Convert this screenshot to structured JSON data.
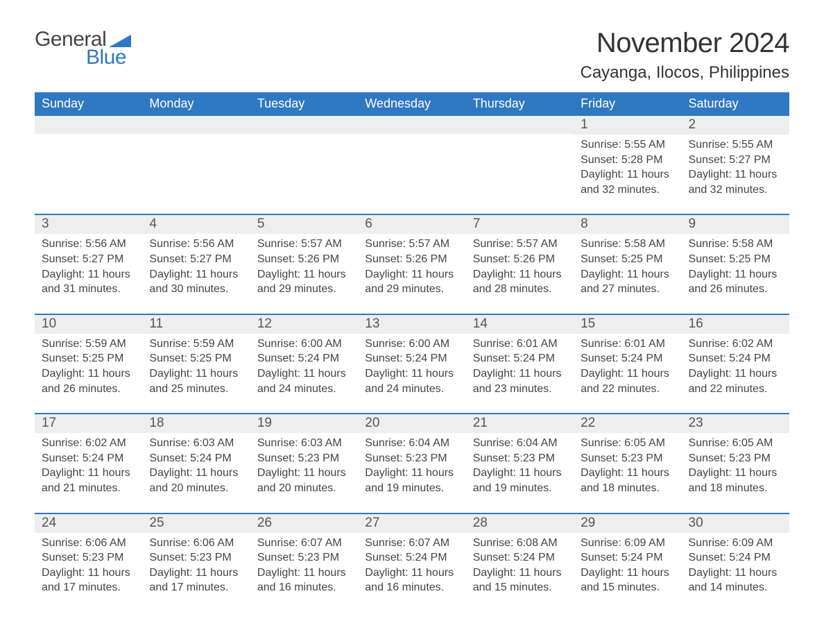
{
  "logo": {
    "word1": "General",
    "word2": "Blue"
  },
  "title": "November 2024",
  "location": "Cayanga, Ilocos, Philippines",
  "day_names": [
    "Sunday",
    "Monday",
    "Tuesday",
    "Wednesday",
    "Thursday",
    "Friday",
    "Saturday"
  ],
  "labels": {
    "sunrise": "Sunrise: ",
    "sunset": "Sunset: ",
    "daylight": "Daylight: "
  },
  "colors": {
    "header_blue": "#2f78c2",
    "grey_band": "#eeeeee",
    "text": "#333333",
    "background": "#ffffff"
  },
  "weeks": [
    [
      {
        "empty": true
      },
      {
        "empty": true
      },
      {
        "empty": true
      },
      {
        "empty": true
      },
      {
        "empty": true
      },
      {
        "n": "1",
        "sunrise": "5:55 AM",
        "sunset": "5:28 PM",
        "daylight": "11 hours and 32 minutes."
      },
      {
        "n": "2",
        "sunrise": "5:55 AM",
        "sunset": "5:27 PM",
        "daylight": "11 hours and 32 minutes."
      }
    ],
    [
      {
        "n": "3",
        "sunrise": "5:56 AM",
        "sunset": "5:27 PM",
        "daylight": "11 hours and 31 minutes."
      },
      {
        "n": "4",
        "sunrise": "5:56 AM",
        "sunset": "5:27 PM",
        "daylight": "11 hours and 30 minutes."
      },
      {
        "n": "5",
        "sunrise": "5:57 AM",
        "sunset": "5:26 PM",
        "daylight": "11 hours and 29 minutes."
      },
      {
        "n": "6",
        "sunrise": "5:57 AM",
        "sunset": "5:26 PM",
        "daylight": "11 hours and 29 minutes."
      },
      {
        "n": "7",
        "sunrise": "5:57 AM",
        "sunset": "5:26 PM",
        "daylight": "11 hours and 28 minutes."
      },
      {
        "n": "8",
        "sunrise": "5:58 AM",
        "sunset": "5:25 PM",
        "daylight": "11 hours and 27 minutes."
      },
      {
        "n": "9",
        "sunrise": "5:58 AM",
        "sunset": "5:25 PM",
        "daylight": "11 hours and 26 minutes."
      }
    ],
    [
      {
        "n": "10",
        "sunrise": "5:59 AM",
        "sunset": "5:25 PM",
        "daylight": "11 hours and 26 minutes."
      },
      {
        "n": "11",
        "sunrise": "5:59 AM",
        "sunset": "5:25 PM",
        "daylight": "11 hours and 25 minutes."
      },
      {
        "n": "12",
        "sunrise": "6:00 AM",
        "sunset": "5:24 PM",
        "daylight": "11 hours and 24 minutes."
      },
      {
        "n": "13",
        "sunrise": "6:00 AM",
        "sunset": "5:24 PM",
        "daylight": "11 hours and 24 minutes."
      },
      {
        "n": "14",
        "sunrise": "6:01 AM",
        "sunset": "5:24 PM",
        "daylight": "11 hours and 23 minutes."
      },
      {
        "n": "15",
        "sunrise": "6:01 AM",
        "sunset": "5:24 PM",
        "daylight": "11 hours and 22 minutes."
      },
      {
        "n": "16",
        "sunrise": "6:02 AM",
        "sunset": "5:24 PM",
        "daylight": "11 hours and 22 minutes."
      }
    ],
    [
      {
        "n": "17",
        "sunrise": "6:02 AM",
        "sunset": "5:24 PM",
        "daylight": "11 hours and 21 minutes."
      },
      {
        "n": "18",
        "sunrise": "6:03 AM",
        "sunset": "5:24 PM",
        "daylight": "11 hours and 20 minutes."
      },
      {
        "n": "19",
        "sunrise": "6:03 AM",
        "sunset": "5:23 PM",
        "daylight": "11 hours and 20 minutes."
      },
      {
        "n": "20",
        "sunrise": "6:04 AM",
        "sunset": "5:23 PM",
        "daylight": "11 hours and 19 minutes."
      },
      {
        "n": "21",
        "sunrise": "6:04 AM",
        "sunset": "5:23 PM",
        "daylight": "11 hours and 19 minutes."
      },
      {
        "n": "22",
        "sunrise": "6:05 AM",
        "sunset": "5:23 PM",
        "daylight": "11 hours and 18 minutes."
      },
      {
        "n": "23",
        "sunrise": "6:05 AM",
        "sunset": "5:23 PM",
        "daylight": "11 hours and 18 minutes."
      }
    ],
    [
      {
        "n": "24",
        "sunrise": "6:06 AM",
        "sunset": "5:23 PM",
        "daylight": "11 hours and 17 minutes."
      },
      {
        "n": "25",
        "sunrise": "6:06 AM",
        "sunset": "5:23 PM",
        "daylight": "11 hours and 17 minutes."
      },
      {
        "n": "26",
        "sunrise": "6:07 AM",
        "sunset": "5:23 PM",
        "daylight": "11 hours and 16 minutes."
      },
      {
        "n": "27",
        "sunrise": "6:07 AM",
        "sunset": "5:24 PM",
        "daylight": "11 hours and 16 minutes."
      },
      {
        "n": "28",
        "sunrise": "6:08 AM",
        "sunset": "5:24 PM",
        "daylight": "11 hours and 15 minutes."
      },
      {
        "n": "29",
        "sunrise": "6:09 AM",
        "sunset": "5:24 PM",
        "daylight": "11 hours and 15 minutes."
      },
      {
        "n": "30",
        "sunrise": "6:09 AM",
        "sunset": "5:24 PM",
        "daylight": "11 hours and 14 minutes."
      }
    ]
  ]
}
